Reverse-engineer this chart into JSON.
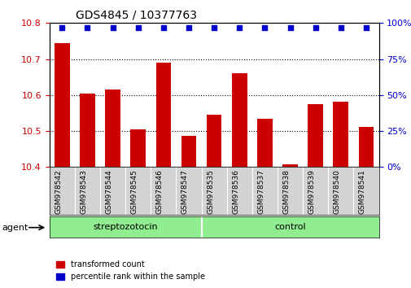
{
  "title": "GDS4845 / 10377763",
  "categories": [
    "GSM978542",
    "GSM978543",
    "GSM978544",
    "GSM978545",
    "GSM978546",
    "GSM978547",
    "GSM978535",
    "GSM978536",
    "GSM978537",
    "GSM978538",
    "GSM978539",
    "GSM978540",
    "GSM978541"
  ],
  "bar_values": [
    10.745,
    10.605,
    10.615,
    10.505,
    10.69,
    10.487,
    10.545,
    10.66,
    10.535,
    10.408,
    10.575,
    10.582,
    10.512
  ],
  "percentile_values": [
    97,
    97,
    97,
    97,
    97,
    97,
    97,
    97,
    97,
    97,
    97,
    97,
    97
  ],
  "bar_color": "#cc0000",
  "dot_color": "#0000cc",
  "ylim_left": [
    10.4,
    10.8
  ],
  "ylim_right": [
    0,
    100
  ],
  "yticks_left": [
    10.4,
    10.5,
    10.6,
    10.7,
    10.8
  ],
  "yticks_right": [
    0,
    25,
    50,
    75,
    100
  ],
  "ytick_labels_right": [
    "0%",
    "25%",
    "50%",
    "75%",
    "100%"
  ],
  "group1_label": "streptozotocin",
  "group2_label": "control",
  "group1_indices": [
    0,
    1,
    2,
    3,
    4,
    5
  ],
  "group2_indices": [
    6,
    7,
    8,
    9,
    10,
    11,
    12
  ],
  "agent_label": "agent",
  "group1_color": "#90ee90",
  "group2_color": "#90ee90",
  "legend1_label": "transformed count",
  "legend2_label": "percentile rank within the sample",
  "bar_width": 0.6,
  "xlabel_color": "#cc0000",
  "ylabel_right_color": "#0000cc",
  "background_plot": "#f0f0f0",
  "background_group": "#90ee90"
}
